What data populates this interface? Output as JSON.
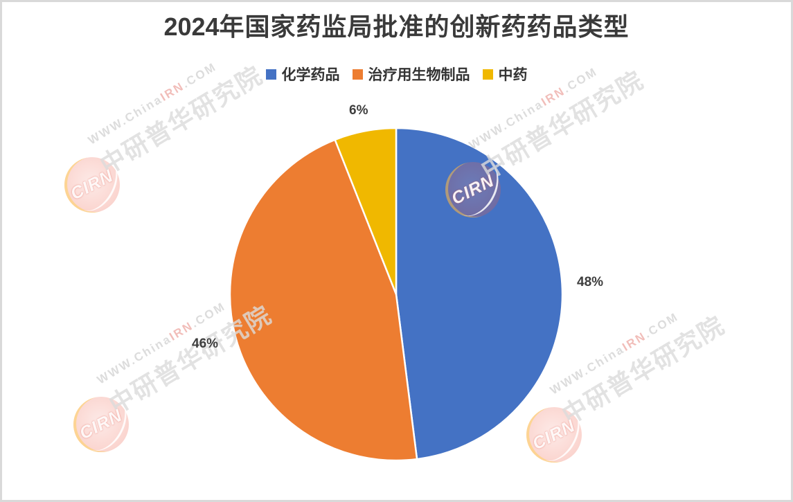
{
  "title": {
    "year": "2024",
    "rest": "年国家药监局批准的创新药药品类型"
  },
  "chart_data": {
    "type": "pie",
    "title": "2024年国家药监局批准的创新药药品类型",
    "categories": [
      "化学药品",
      "治疗用生物制品",
      "中药"
    ],
    "values": [
      48,
      46,
      6
    ],
    "unit": "%",
    "colors": [
      "#4472C4",
      "#ED7D31",
      "#F0B800"
    ],
    "data_labels": [
      "48%",
      "46%",
      "6%"
    ],
    "legend_position": "top",
    "start_angle_deg": 0,
    "direction": "clockwise",
    "separator_color": "#FFFFFF"
  },
  "watermark": {
    "url_prefix": "WWW.China",
    "url_highlight": "IRN",
    "url_suffix": ".COM",
    "org_name": "中研普华研究院",
    "logo_text": "CIRN"
  },
  "frame_border_color": "#D9D9D9"
}
